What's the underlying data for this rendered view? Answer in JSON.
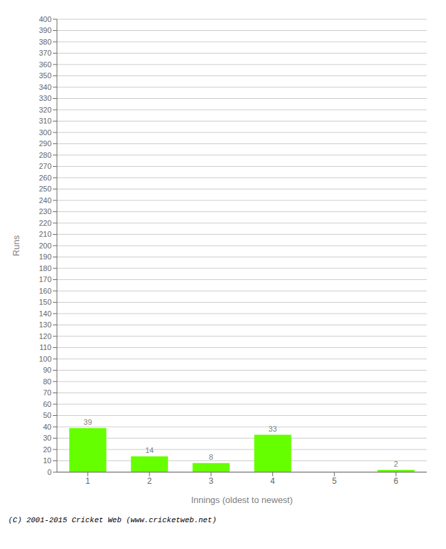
{
  "chart_data": {
    "type": "bar",
    "categories": [
      "1",
      "2",
      "3",
      "4",
      "5",
      "6"
    ],
    "values": [
      39,
      14,
      8,
      33,
      0,
      2
    ],
    "color": "#66ff00",
    "xlabel": "Innings (oldest to newest)",
    "ylabel": "Runs",
    "ylim": [
      0,
      400
    ],
    "yticks": [
      0,
      10,
      20,
      30,
      40,
      50,
      60,
      70,
      80,
      90,
      100,
      110,
      120,
      130,
      140,
      150,
      160,
      170,
      180,
      190,
      200,
      210,
      220,
      230,
      240,
      250,
      260,
      270,
      280,
      290,
      300,
      310,
      320,
      330,
      340,
      350,
      360,
      370,
      380,
      390,
      400
    ],
    "grid": true,
    "data_labels": true,
    "annotations": [
      "(C) 2001-2015 Cricket Web (www.cricketweb.net)"
    ]
  }
}
